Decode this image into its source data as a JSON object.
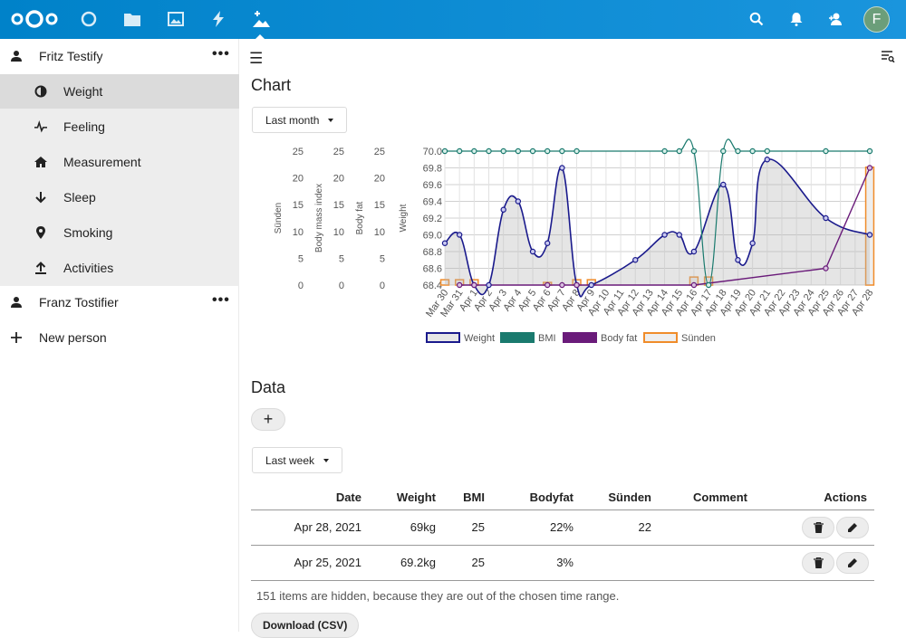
{
  "header": {
    "apps": [
      "dashboard-icon",
      "files-icon",
      "photos-icon",
      "activity-icon",
      "health-icon"
    ],
    "right": [
      "search-icon",
      "notifications-icon",
      "contacts-icon"
    ],
    "avatar_letter": "F"
  },
  "sidebar": {
    "persons": [
      {
        "name": "Fritz Testify"
      },
      {
        "name": "Franz Tostifier"
      }
    ],
    "items": [
      {
        "label": "Weight",
        "icon": "weight-icon"
      },
      {
        "label": "Feeling",
        "icon": "pulse-icon"
      },
      {
        "label": "Measurement",
        "icon": "home-icon"
      },
      {
        "label": "Sleep",
        "icon": "arrow-down-icon"
      },
      {
        "label": "Smoking",
        "icon": "location-icon"
      },
      {
        "label": "Activities",
        "icon": "upload-icon"
      }
    ],
    "new_person": "New person"
  },
  "main": {
    "chart_title": "Chart",
    "chart_range": "Last month",
    "data_title": "Data",
    "data_range": "Last week",
    "table": {
      "headers": [
        "Date",
        "Weight",
        "BMI",
        "Bodyfat",
        "Sünden",
        "Comment",
        "Actions"
      ],
      "rows": [
        [
          "Apr 28, 2021",
          "69kg",
          "25",
          "22%",
          "22",
          ""
        ],
        [
          "Apr 25, 2021",
          "69.2kg",
          "25",
          "3%",
          "",
          ""
        ]
      ]
    },
    "hidden_note": "151 items are hidden, because they are out of the chosen time range.",
    "download_label": "Download (CSV)"
  },
  "chart_data": {
    "type": "line",
    "x": [
      "Mar 30",
      "Mar 31",
      "Apr 1",
      "Apr 2",
      "Apr 3",
      "Apr 4",
      "Apr 5",
      "Apr 6",
      "Apr 7",
      "Apr 8",
      "Apr 9",
      "Apr 10",
      "Apr 11",
      "Apr 12",
      "Apr 13",
      "Apr 14",
      "Apr 15",
      "Apr 16",
      "Apr 17",
      "Apr 18",
      "Apr 19",
      "Apr 20",
      "Apr 21",
      "Apr 22",
      "Apr 23",
      "Apr 24",
      "Apr 25",
      "Apr 26",
      "Apr 27",
      "Apr 28"
    ],
    "axes": [
      {
        "label": "Sünden",
        "ticks": [
          "25",
          "20",
          "15",
          "10",
          "5",
          "0"
        ]
      },
      {
        "label": "Body mass index",
        "ticks": [
          "25",
          "20",
          "15",
          "10",
          "5",
          "0"
        ]
      },
      {
        "label": "Body fat",
        "ticks": [
          "25",
          "20",
          "15",
          "10",
          "5",
          "0"
        ]
      },
      {
        "label": "Weight",
        "ticks": [
          "70.0",
          "69.8",
          "69.6",
          "69.4",
          "69.2",
          "69.0",
          "68.8",
          "68.6",
          "68.4"
        ],
        "ylim": [
          68.4,
          70.0
        ]
      }
    ],
    "legend": [
      {
        "name": "Weight",
        "color": "#1a1a8c",
        "fill": "#e6e6e6"
      },
      {
        "name": "BMI",
        "color": "#1a7a6e",
        "fill": "#1a7a6e"
      },
      {
        "name": "Body fat",
        "color": "#6a1b7a",
        "fill": "#6a1b7a"
      },
      {
        "name": "Sünden",
        "color": "#f08c2a",
        "fill": "#eeeeee"
      }
    ],
    "series": [
      {
        "name": "Weight",
        "values": [
          68.9,
          69.0,
          68.4,
          68.4,
          69.3,
          69.4,
          68.8,
          68.9,
          69.8,
          68.4,
          68.4,
          null,
          null,
          68.7,
          null,
          69.0,
          69.0,
          68.8,
          null,
          69.6,
          68.7,
          68.9,
          69.9,
          null,
          null,
          null,
          69.2,
          null,
          null,
          69.0
        ]
      },
      {
        "name": "BMI",
        "values": [
          70.0,
          70.0,
          70.0,
          70.0,
          70.0,
          70.0,
          70.0,
          70.0,
          70.0,
          70.0,
          null,
          null,
          null,
          null,
          null,
          70.0,
          70.0,
          70.0,
          68.4,
          70.0,
          70.0,
          70.0,
          70.0,
          null,
          null,
          null,
          70.0,
          null,
          null,
          70.0
        ]
      },
      {
        "name": "Body fat",
        "values": [
          null,
          68.4,
          68.4,
          null,
          null,
          null,
          null,
          68.4,
          68.4,
          68.4,
          null,
          null,
          null,
          null,
          null,
          null,
          null,
          68.4,
          null,
          null,
          null,
          null,
          null,
          null,
          null,
          null,
          68.6,
          null,
          null,
          69.8
        ]
      },
      {
        "name": "Sünden",
        "values": [
          1,
          1,
          1,
          null,
          null,
          null,
          null,
          0.5,
          null,
          1,
          1,
          null,
          null,
          null,
          null,
          null,
          null,
          1.5,
          1.5,
          null,
          null,
          null,
          null,
          null,
          null,
          null,
          null,
          null,
          null,
          22
        ]
      }
    ]
  }
}
